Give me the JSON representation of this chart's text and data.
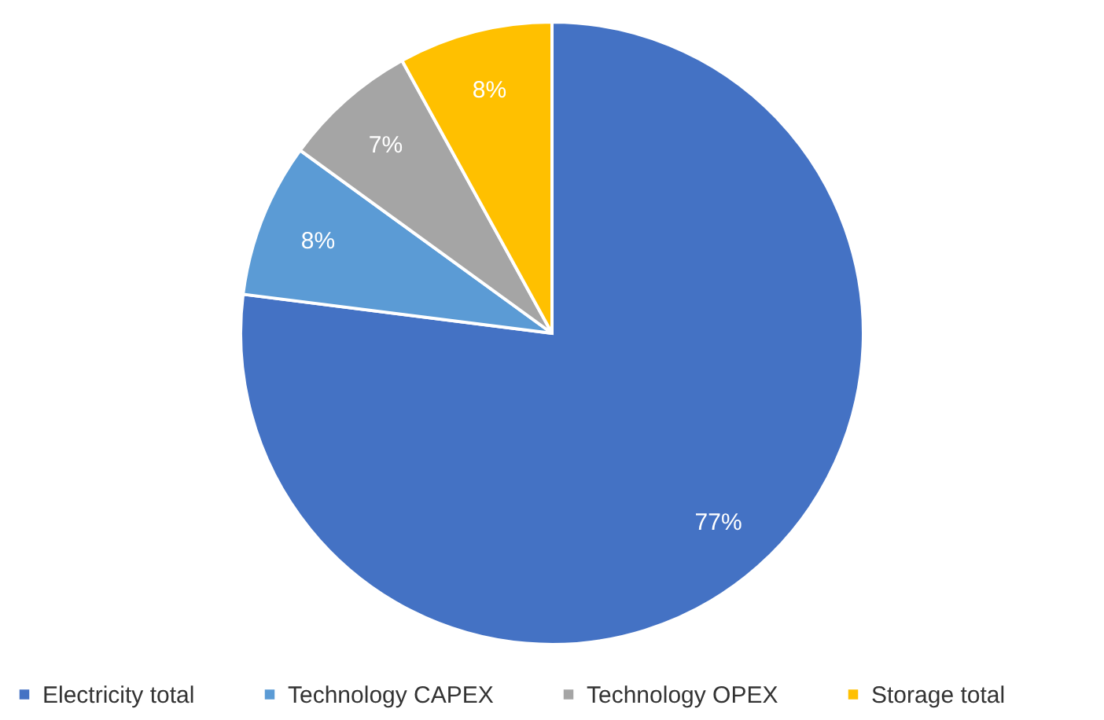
{
  "chart_data": {
    "type": "pie",
    "categories": [
      "Electricity total",
      "Technology CAPEX",
      "Technology OPEX",
      "Storage total"
    ],
    "values": [
      77,
      8,
      7,
      8
    ],
    "value_labels": [
      "77%",
      "8%",
      "7%",
      "8%"
    ],
    "colors": [
      "#4472c4",
      "#5b9bd5",
      "#a5a5a5",
      "#ffc000"
    ],
    "legend": "bottom"
  }
}
